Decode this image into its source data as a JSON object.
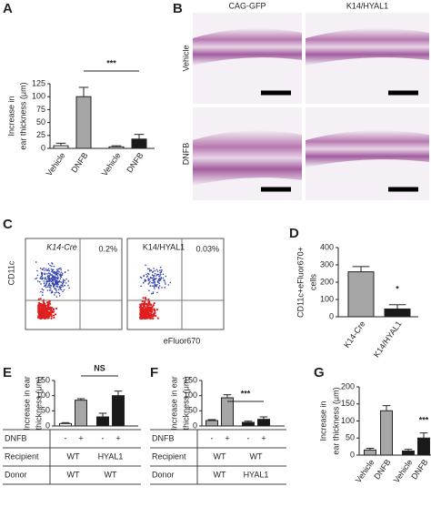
{
  "chart_data": [
    {
      "type": "bar",
      "letter": "A",
      "ylabel": [
        "Increase in",
        "ear thickness (μm)"
      ],
      "categories": [
        "Vehicle",
        "DNFB",
        "Vehicle",
        "DNFB"
      ],
      "values": [
        5,
        100,
        3,
        18
      ],
      "errors": [
        5,
        18,
        2,
        9
      ],
      "colors": [
        "#ffffff",
        "#a6a6a6",
        "#ffffff",
        "#1a1a1a"
      ],
      "ylim": [
        0,
        125
      ],
      "yticks": [
        0,
        25,
        50,
        75,
        100,
        125
      ],
      "significance": "***"
    },
    {
      "type": "bar",
      "letter": "D",
      "ylabel": [
        "CD11c+eFluor670+",
        "cells"
      ],
      "categories": [
        "K14-Cre",
        "K14/HYAL1"
      ],
      "values": [
        260,
        45
      ],
      "errors": [
        30,
        25
      ],
      "colors": [
        "#a6a6a6",
        "#1a1a1a"
      ],
      "ylim": [
        0,
        400
      ],
      "yticks": [
        0,
        100,
        200,
        300,
        400
      ],
      "significance": "*"
    },
    {
      "type": "bar",
      "letter": "E",
      "ylabel": [
        "Increase in ear",
        "thickness (μm)"
      ],
      "values": [
        8,
        85,
        30,
        100
      ],
      "errors": [
        3,
        5,
        12,
        15
      ],
      "colors": [
        "#ffffff",
        "#a6a6a6",
        "#1a1a1a",
        "#1a1a1a"
      ],
      "ylim": [
        0,
        150
      ],
      "yticks": [
        0,
        50,
        100,
        150
      ],
      "significance": "NS",
      "table": {
        "rows": [
          {
            "label": "DNFB",
            "cells": [
              "-",
              "+",
              "-",
              "+"
            ]
          },
          {
            "label": "Recipient",
            "cells": [
              "WT",
              "HYAL1"
            ]
          },
          {
            "label": "Donor",
            "cells": [
              "WT",
              "WT"
            ]
          }
        ]
      }
    },
    {
      "type": "bar",
      "letter": "F",
      "ylabel": [
        "Increase in ear",
        "thickness (μm)"
      ],
      "values": [
        18,
        93,
        12,
        22
      ],
      "errors": [
        3,
        10,
        4,
        8
      ],
      "colors": [
        "#a6a6a6",
        "#a6a6a6",
        "#1a1a1a",
        "#1a1a1a"
      ],
      "ylim": [
        0,
        150
      ],
      "yticks": [
        0,
        50,
        100,
        150
      ],
      "significance": "***",
      "table": {
        "rows": [
          {
            "label": "DNFB",
            "cells": [
              "-",
              "+",
              "-",
              "+"
            ]
          },
          {
            "label": "Recipient",
            "cells": [
              "WT",
              "WT"
            ]
          },
          {
            "label": "Donor",
            "cells": [
              "WT",
              "HYAL1"
            ]
          }
        ]
      }
    },
    {
      "type": "bar",
      "letter": "G",
      "ylabel": [
        "Increase in",
        "ear thickness (μm)"
      ],
      "categories": [
        "Vehicle",
        "DNFB",
        "Vehicle",
        "DNFB"
      ],
      "values": [
        15,
        130,
        12,
        50
      ],
      "errors": [
        5,
        15,
        5,
        15
      ],
      "colors": [
        "#a6a6a6",
        "#a6a6a6",
        "#1a1a1a",
        "#1a1a1a"
      ],
      "ylim": [
        0,
        200
      ],
      "yticks": [
        0,
        50,
        100,
        150,
        200
      ],
      "significance": "***"
    }
  ],
  "panels": {
    "B": {
      "letter": "B",
      "columns": [
        "CAG-GFP",
        "K14/HYAL1"
      ],
      "rows": [
        "Vehicle",
        "DNFB"
      ]
    },
    "C": {
      "letter": "C",
      "plots": [
        {
          "title": "K14-Cre",
          "percent": "0.2%"
        },
        {
          "title": "K14/HYAL1",
          "percent": "0.03%"
        }
      ],
      "ylabel": "CD11c",
      "xlabel": "eFluor670"
    }
  }
}
